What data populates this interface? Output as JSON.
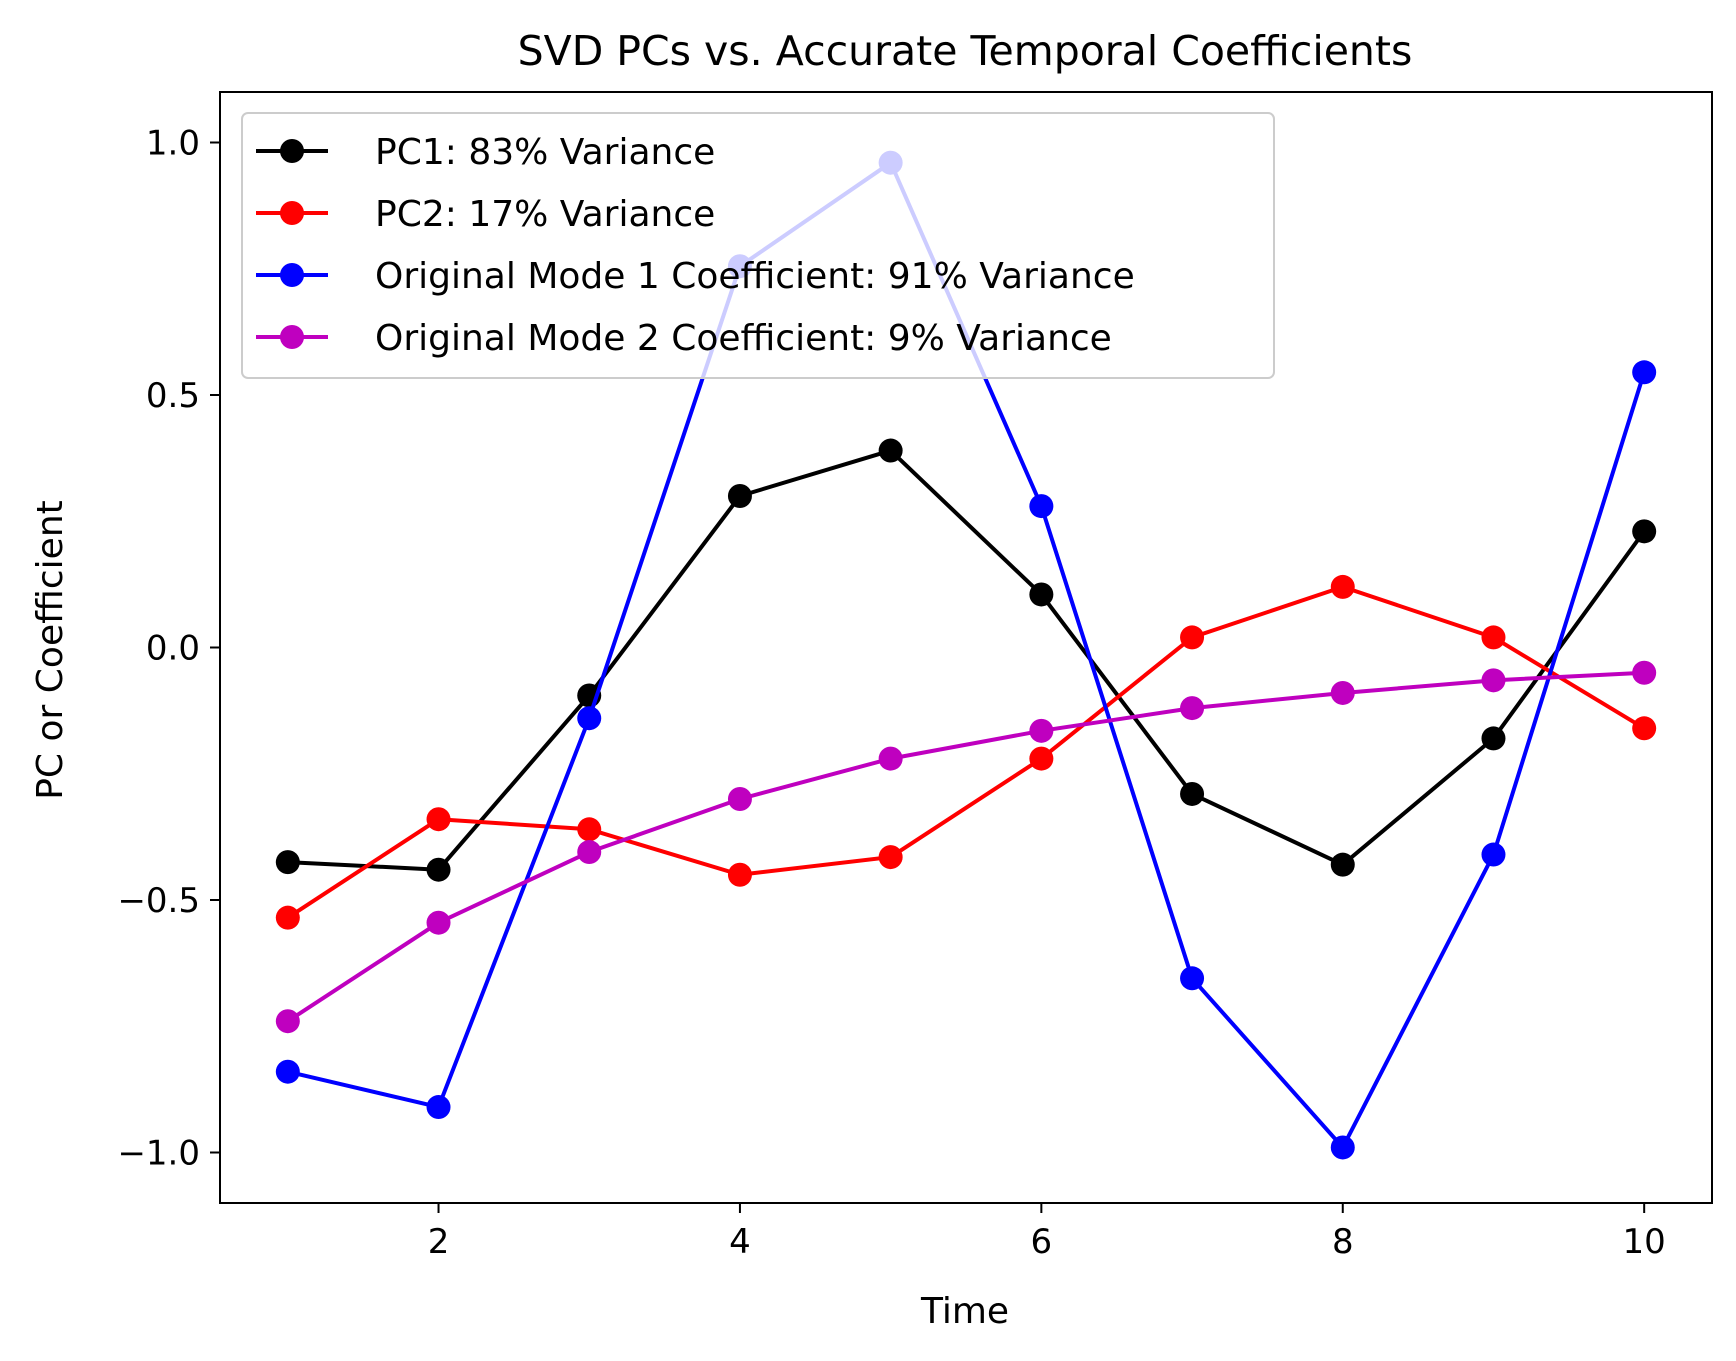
{
  "chart_data": {
    "type": "line",
    "title": "SVD PCs vs. Accurate Temporal Coefficients",
    "xlabel": "Time",
    "ylabel": "PC or Coefficient",
    "xlim": [
      0.55,
      10.45
    ],
    "ylim": [
      -1.1,
      1.1
    ],
    "x_ticks": [
      2,
      4,
      6,
      8,
      10
    ],
    "x_tick_labels": [
      "2",
      "4",
      "6",
      "8",
      "10"
    ],
    "y_ticks": [
      1.0,
      0.5,
      0.0,
      -0.5,
      -1.0
    ],
    "y_tick_labels": [
      "1.0",
      "0.5",
      "0.0",
      "−0.5",
      "−1.0"
    ],
    "grid": false,
    "legend_position": "upper-left",
    "x": [
      1,
      2,
      3,
      4,
      5,
      6,
      7,
      8,
      9,
      10
    ],
    "series": [
      {
        "name": "PC1: 83% Variance",
        "color": "#000000",
        "values": [
          -0.425,
          -0.44,
          -0.095,
          0.3,
          0.39,
          0.105,
          -0.29,
          -0.43,
          -0.18,
          0.23
        ]
      },
      {
        "name": "PC2: 17% Variance",
        "color": "#ff0000",
        "values": [
          -0.535,
          -0.34,
          -0.36,
          -0.45,
          -0.415,
          -0.22,
          0.02,
          0.12,
          0.02,
          -0.16
        ]
      },
      {
        "name": "Original Mode 1 Coefficient: 91% Variance",
        "color": "#0000ff",
        "values": [
          -0.84,
          -0.91,
          -0.14,
          0.755,
          0.96,
          0.28,
          -0.655,
          -0.99,
          -0.41,
          0.545
        ]
      },
      {
        "name": "Original Mode 2 Coefficient: 9% Variance",
        "color": "#bf00bf",
        "values": [
          -0.74,
          -0.545,
          -0.405,
          -0.3,
          -0.22,
          -0.165,
          -0.12,
          -0.09,
          -0.065,
          -0.05
        ]
      }
    ]
  }
}
